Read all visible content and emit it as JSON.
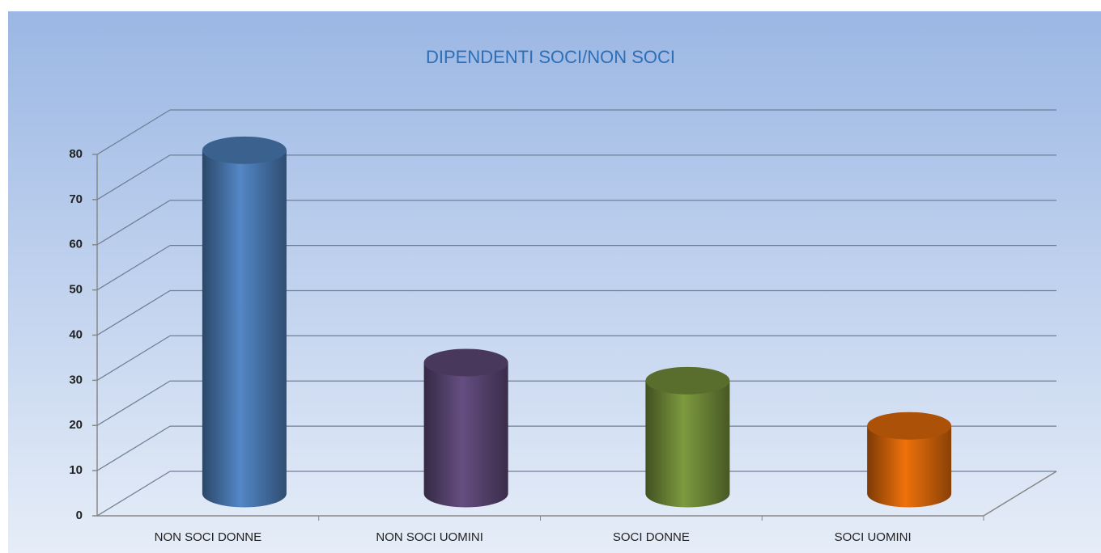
{
  "chart_data": {
    "type": "bar3d",
    "title": "DIPENDENTI SOCI/NON SOCI",
    "categories": [
      "NON SOCI DONNE",
      "NON SOCI UOMINI",
      "SOCI DONNE",
      "SOCI UOMINI"
    ],
    "values": [
      76,
      29,
      25,
      15
    ],
    "colors": [
      "#4f81bd",
      "#604a7b",
      "#77933c",
      "#e46c0a"
    ],
    "ylim": [
      0,
      80
    ],
    "yticks": [
      0,
      10,
      20,
      30,
      40,
      50,
      60,
      70,
      80
    ],
    "grid": true
  }
}
